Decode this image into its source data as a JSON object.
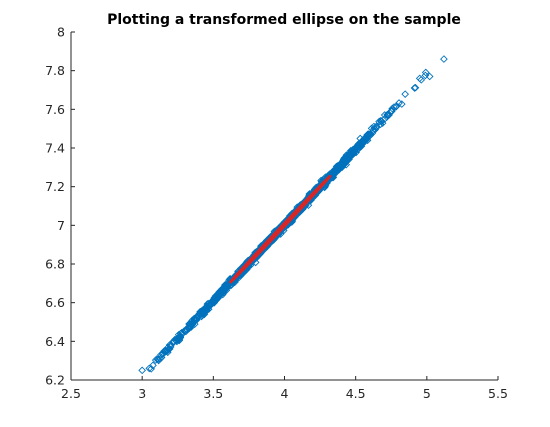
{
  "chart_data": {
    "type": "scatter",
    "title": "Plotting a transformed ellipse on the sample",
    "xlabel": "",
    "ylabel": "",
    "xlim": [
      2.5,
      5.5
    ],
    "ylim": [
      6.2,
      8.0
    ],
    "xticks": [
      "2.5",
      "3",
      "3.5",
      "4",
      "4.5",
      "5",
      "5.5"
    ],
    "yticks": [
      "6.2",
      "6.4",
      "6.6",
      "6.8",
      "7",
      "7.2",
      "7.4",
      "7.6",
      "7.8",
      "8"
    ],
    "grid": false,
    "legend": "none",
    "sample": {
      "marker": "diamond-open",
      "color": "#0072BD",
      "trend": {
        "slope": 0.7833,
        "intercept": 3.8683
      },
      "x_range": [
        3.0,
        5.1
      ],
      "extreme_points": [
        [
          3.0,
          6.25
        ],
        [
          3.05,
          6.26
        ],
        [
          4.95,
          7.76
        ],
        [
          5.02,
          7.77
        ],
        [
          5.12,
          7.86
        ]
      ]
    },
    "ellipse": {
      "color": "#D62728",
      "center": [
        3.97,
        6.98
      ],
      "x_extent": [
        3.62,
        4.32
      ],
      "semi_major": 0.445,
      "semi_minor": 0.007,
      "angle_deg": 38.07
    }
  }
}
